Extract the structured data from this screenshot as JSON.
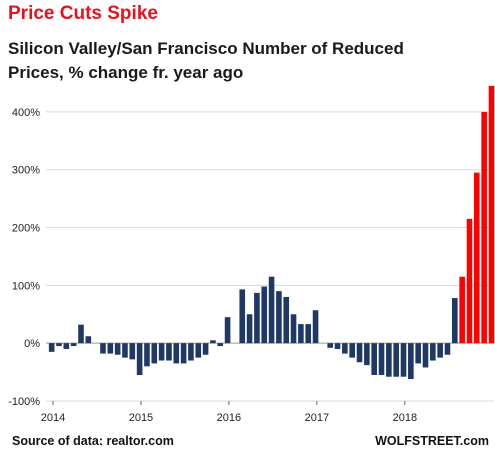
{
  "chart_data": {
    "type": "bar",
    "title": "Price Cuts Spike",
    "subtitle": "Silicon Valley/San Francisco Number of Reduced Prices, % change fr. year ago",
    "xlabel": "",
    "ylabel": "",
    "ylim": [
      -100,
      450
    ],
    "yticks": [
      -100,
      0,
      100,
      200,
      300,
      400
    ],
    "ytick_labels": [
      "-100%",
      "0%",
      "100%",
      "200%",
      "300%",
      "400%"
    ],
    "x_tick_labels": [
      "2014",
      "2015",
      "2016",
      "2017",
      "2018"
    ],
    "start_period": "2014-01",
    "grid": true,
    "colors": {
      "normal": "#1f3864",
      "spike": "#ff0000"
    },
    "values": [
      -15,
      -5,
      -10,
      -5,
      32,
      12,
      0,
      -18,
      -18,
      -20,
      -25,
      -28,
      -55,
      -40,
      -35,
      -30,
      -30,
      -35,
      -35,
      -30,
      -25,
      -20,
      5,
      -5,
      45,
      0,
      93,
      50,
      87,
      98,
      115,
      90,
      80,
      50,
      33,
      33,
      57,
      0,
      -8,
      -10,
      -18,
      -25,
      -33,
      -38,
      -55,
      -55,
      -58,
      -58,
      -58,
      -62,
      -35,
      -42,
      -30,
      -25,
      -20,
      78,
      115,
      215,
      295,
      400,
      445
    ],
    "highlight_from_index": 56
  },
  "source_text": "Source of data: realtor.com",
  "brand": "WOLFSTREET.com"
}
